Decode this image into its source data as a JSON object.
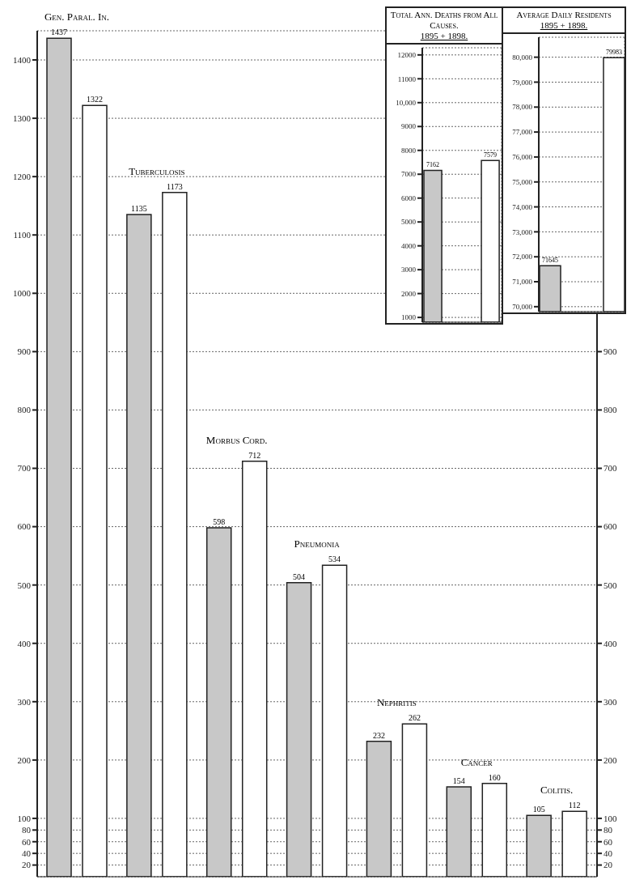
{
  "chart_data": [
    {
      "type": "bar",
      "categories": [
        "Gen. Paral. In.",
        "Tuberculosis",
        "Morbus Cord.",
        "Pneumonia",
        "Nephritis",
        "Cancer",
        "Colitis."
      ],
      "series": [
        {
          "color": "#c8c8c8",
          "values": [
            1437,
            1135,
            598,
            504,
            232,
            154,
            105
          ]
        },
        {
          "color": "#ffffff",
          "values": [
            1322,
            1173,
            712,
            534,
            262,
            160,
            112
          ]
        }
      ],
      "data_labels": true,
      "grid": true,
      "ylim": [
        0,
        1450
      ],
      "yticks": [
        20,
        40,
        60,
        80,
        100,
        200,
        300,
        400,
        500,
        600,
        700,
        800,
        900,
        1000,
        1100,
        1200,
        1300,
        1400
      ],
      "y2lim": [
        0,
        1450
      ],
      "y2ticks": [
        20,
        40,
        60,
        80,
        100,
        200,
        300,
        400,
        500,
        600,
        700,
        800,
        900
      ]
    },
    {
      "type": "bar",
      "title": "Total Ann. Deaths from All Causes.",
      "subtitle": "1895 + 1898.",
      "categories": [
        null,
        null
      ],
      "series": [
        {
          "color": "#c8c8c8",
          "values": [
            7162,
            null
          ]
        },
        {
          "color": "#ffffff",
          "values": [
            null,
            7579
          ]
        }
      ],
      "data_labels": true,
      "grid": true,
      "ylim": [
        800,
        12300
      ],
      "yticks": [
        1000,
        2000,
        3000,
        4000,
        5000,
        6000,
        7000,
        8000,
        9000,
        {
          "value": 10000,
          "label": "10,000"
        },
        11000,
        12000
      ]
    },
    {
      "type": "bar",
      "title": "Average Daily Residents",
      "subtitle": "1895 + 1898.",
      "categories": [
        null,
        null
      ],
      "series": [
        {
          "color": "#c8c8c8",
          "values": [
            71645,
            null
          ]
        },
        {
          "color": "#ffffff",
          "values": [
            null,
            79983
          ]
        }
      ],
      "data_labels": true,
      "grid": true,
      "ylim": [
        69800,
        80800
      ],
      "yticks": [
        {
          "value": 70000,
          "label": "70,000"
        },
        {
          "value": 71000,
          "label": "71,000"
        },
        {
          "value": 72000,
          "label": "72,000"
        },
        {
          "value": 73000,
          "label": "73,000"
        },
        {
          "value": 74000,
          "label": "74,000"
        },
        {
          "value": 75000,
          "label": "75,000"
        },
        {
          "value": 76000,
          "label": "76,000"
        },
        {
          "value": 77000,
          "label": "77,000"
        },
        {
          "value": 78000,
          "label": "78,000"
        },
        {
          "value": 79000,
          "label": "79,000"
        },
        {
          "value": 80000,
          "label": "80,000"
        }
      ]
    }
  ]
}
